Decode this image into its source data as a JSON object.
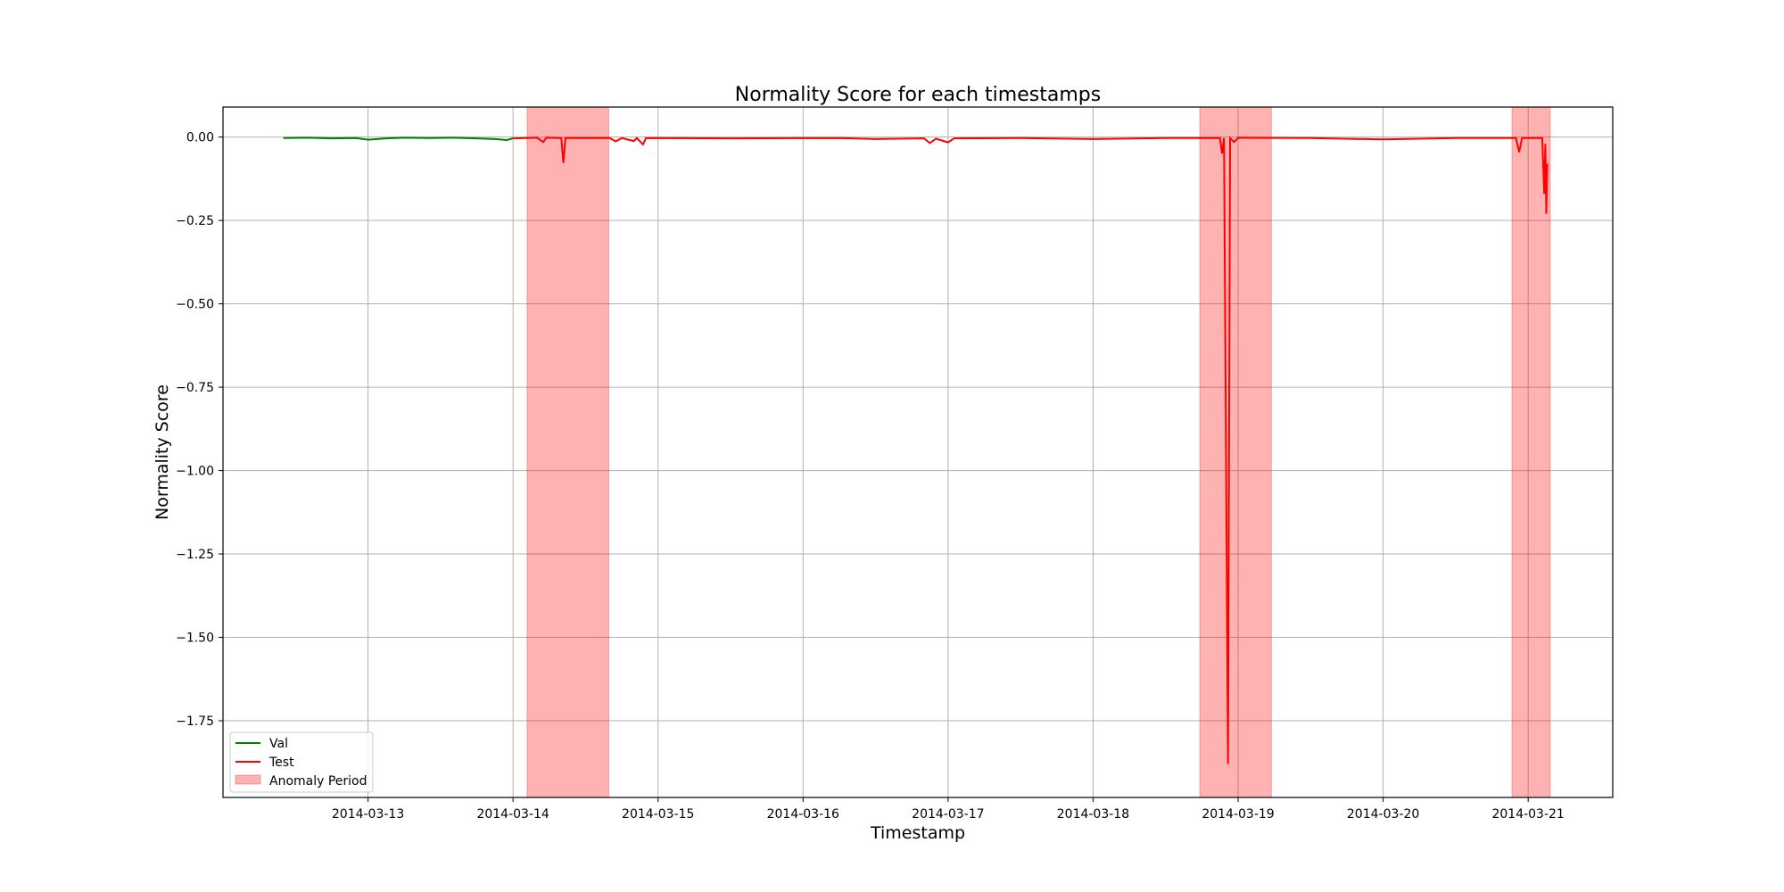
{
  "chart_data": {
    "type": "line",
    "title": "Normality Score for each timestamps",
    "xlabel": "Timestamp",
    "ylabel": "Normality Score",
    "x_range": [
      "2014-03-12T00:00",
      "2014-03-21T14:00"
    ],
    "ylim": [
      -1.98,
      0.09
    ],
    "x_ticks": [
      "2014-03-13",
      "2014-03-14",
      "2014-03-15",
      "2014-03-16",
      "2014-03-17",
      "2014-03-18",
      "2014-03-19",
      "2014-03-20",
      "2014-03-21"
    ],
    "y_ticks": [
      0.0,
      -0.25,
      -0.5,
      -0.75,
      -1.0,
      -1.25,
      -1.5,
      -1.75
    ],
    "y_tick_labels": [
      "0.00",
      "−0.25",
      "−0.50",
      "−0.75",
      "−1.00",
      "−1.25",
      "−1.50",
      "−1.75"
    ],
    "grid": true,
    "legend_position": "lower-left",
    "legend": [
      "Val",
      "Test",
      "Anomaly Period"
    ],
    "anomaly_periods": [
      {
        "start": "2014-03-14T02:20",
        "end": "2014-03-14T15:50"
      },
      {
        "start": "2014-03-18T17:40",
        "end": "2014-03-19T05:30"
      },
      {
        "start": "2014-03-20T21:20",
        "end": "2014-03-21T03:40"
      }
    ],
    "series": [
      {
        "name": "Val",
        "color": "#008000",
        "points": [
          [
            "2014-03-12T10:00",
            -0.003
          ],
          [
            "2014-03-12T14:00",
            -0.002
          ],
          [
            "2014-03-12T18:00",
            -0.004
          ],
          [
            "2014-03-12T22:00",
            -0.003
          ],
          [
            "2014-03-13T00:00",
            -0.008
          ],
          [
            "2014-03-13T03:00",
            -0.004
          ],
          [
            "2014-03-13T06:00",
            -0.002
          ],
          [
            "2014-03-13T10:00",
            -0.003
          ],
          [
            "2014-03-13T14:00",
            -0.002
          ],
          [
            "2014-03-13T18:00",
            -0.004
          ],
          [
            "2014-03-13T21:00",
            -0.006
          ],
          [
            "2014-03-13T23:00",
            -0.009
          ],
          [
            "2014-03-14T00:00",
            -0.004
          ]
        ]
      },
      {
        "name": "Test",
        "color": "#ff0000",
        "points": [
          [
            "2014-03-14T00:00",
            -0.004
          ],
          [
            "2014-03-14T04:00",
            -0.002
          ],
          [
            "2014-03-14T05:00",
            -0.015
          ],
          [
            "2014-03-14T05:30",
            -0.002
          ],
          [
            "2014-03-14T08:00",
            -0.003
          ],
          [
            "2014-03-14T08:20",
            -0.078
          ],
          [
            "2014-03-14T08:40",
            -0.003
          ],
          [
            "2014-03-14T16:00",
            -0.003
          ],
          [
            "2014-03-14T17:00",
            -0.013
          ],
          [
            "2014-03-14T18:00",
            -0.003
          ],
          [
            "2014-03-14T20:00",
            -0.012
          ],
          [
            "2014-03-14T20:30",
            -0.003
          ],
          [
            "2014-03-14T21:30",
            -0.022
          ],
          [
            "2014-03-14T22:00",
            -0.003
          ],
          [
            "2014-03-15T12:00",
            -0.004
          ],
          [
            "2014-03-16T06:00",
            -0.003
          ],
          [
            "2014-03-16T12:00",
            -0.006
          ],
          [
            "2014-03-16T20:00",
            -0.004
          ],
          [
            "2014-03-16T21:00",
            -0.018
          ],
          [
            "2014-03-16T22:00",
            -0.005
          ],
          [
            "2014-03-17T00:00",
            -0.016
          ],
          [
            "2014-03-17T01:00",
            -0.004
          ],
          [
            "2014-03-17T12:00",
            -0.003
          ],
          [
            "2014-03-18T00:00",
            -0.006
          ],
          [
            "2014-03-18T12:00",
            -0.003
          ],
          [
            "2014-03-18T21:00",
            -0.003
          ],
          [
            "2014-03-18T21:20",
            -0.05
          ],
          [
            "2014-03-18T21:40",
            -0.003
          ],
          [
            "2014-03-18T22:20",
            -1.88
          ],
          [
            "2014-03-18T22:40",
            -0.003
          ],
          [
            "2014-03-18T23:20",
            -0.015
          ],
          [
            "2014-03-19T00:00",
            -0.002
          ],
          [
            "2014-03-19T12:00",
            -0.003
          ],
          [
            "2014-03-20T00:00",
            -0.007
          ],
          [
            "2014-03-20T12:00",
            -0.003
          ],
          [
            "2014-03-20T22:00",
            -0.003
          ],
          [
            "2014-03-20T22:30",
            -0.045
          ],
          [
            "2014-03-20T23:00",
            -0.003
          ],
          [
            "2014-03-21T02:20",
            -0.003
          ],
          [
            "2014-03-21T02:40",
            -0.17
          ],
          [
            "2014-03-21T02:50",
            -0.02
          ],
          [
            "2014-03-21T03:00",
            -0.23
          ],
          [
            "2014-03-21T03:10",
            -0.08
          ]
        ]
      }
    ],
    "anomaly_color": "#ff0000"
  }
}
